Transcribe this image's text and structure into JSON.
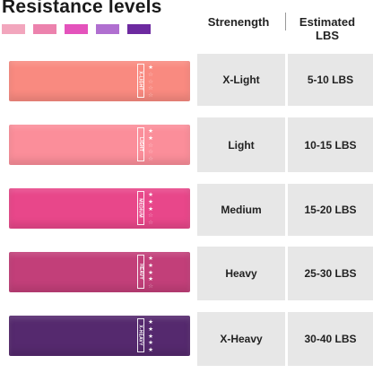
{
  "title": "Resistance levels",
  "headers": {
    "strength": "Strenength",
    "lbs": "Estimated LBS"
  },
  "swatch_colors": [
    "#f2a6bd",
    "#ec82ad",
    "#e453bc",
    "#b06fd0",
    "#6d2aa0"
  ],
  "levels": [
    {
      "band_label": "X-LIGHT",
      "stars": 1,
      "strength": "X-Light",
      "lbs": "5-10 LBS",
      "color": "#f98a80"
    },
    {
      "band_label": "LIGHT",
      "stars": 2,
      "strength": "Light",
      "lbs": "10-15 LBS",
      "color": "#fb8e9a"
    },
    {
      "band_label": "MEDIUM",
      "stars": 3,
      "strength": "Medium",
      "lbs": "15-20 LBS",
      "color": "#e8478a"
    },
    {
      "band_label": "HEAVY",
      "stars": 4,
      "strength": "Heavy",
      "lbs": "25-30 LBS",
      "color": "#c23f79"
    },
    {
      "band_label": "X-HEAVY",
      "stars": 5,
      "strength": "X-Heavy",
      "lbs": "30-40 LBS",
      "color": "#55296e"
    }
  ]
}
